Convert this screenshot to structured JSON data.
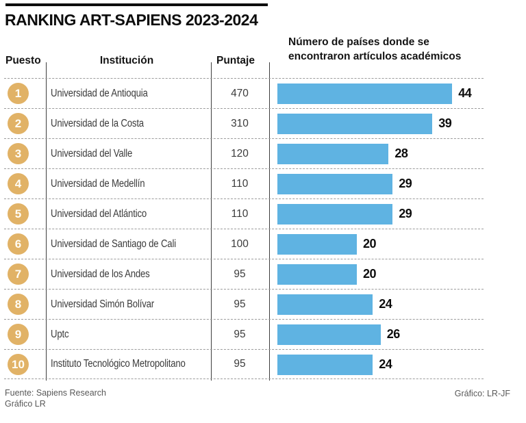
{
  "title": "RANKING ART-SAPIENS 2023-2024",
  "columns": {
    "rank": "Puesto",
    "institution": "Institución",
    "score": "Puntaje"
  },
  "bar_header": "Número de países donde se encontraron artículos académicos",
  "rows": [
    {
      "rank": "1",
      "institution": "Universidad de Antioquia",
      "score": "470",
      "countries": 44
    },
    {
      "rank": "2",
      "institution": "Universidad de la Costa",
      "score": "310",
      "countries": 39
    },
    {
      "rank": "3",
      "institution": "Universidad del Valle",
      "score": "120",
      "countries": 28
    },
    {
      "rank": "4",
      "institution": "Universidad de Medellín",
      "score": "110",
      "countries": 29
    },
    {
      "rank": "5",
      "institution": "Universidad del Atlántico",
      "score": "110",
      "countries": 29
    },
    {
      "rank": "6",
      "institution": "Universidad de Santiago de Cali",
      "score": "100",
      "countries": 20
    },
    {
      "rank": "7",
      "institution": "Universidad de los Andes",
      "score": "95",
      "countries": 20
    },
    {
      "rank": "8",
      "institution": "Universidad Simón Bolívar",
      "score": "95",
      "countries": 24
    },
    {
      "rank": "9",
      "institution": "Uptc",
      "score": "95",
      "countries": 26
    },
    {
      "rank": "10",
      "institution": "Instituto Tecnológico Metropolitano",
      "score": "95",
      "countries": 24
    }
  ],
  "footer": {
    "source_line1": "Fuente: Sapiens Research",
    "source_line2": "Gráfico LR",
    "credit": "Gráfico: LR-JF"
  },
  "colors": {
    "bar": "#5fb3e2",
    "rank_circle": "#e1b266"
  },
  "chart_data": {
    "type": "bar",
    "orientation": "horizontal",
    "title": "RANKING ART-SAPIENS 2023-2024",
    "categories": [
      "Universidad de Antioquia",
      "Universidad de la Costa",
      "Universidad del Valle",
      "Universidad de Medellín",
      "Universidad del Atlántico",
      "Universidad de Santiago de Cali",
      "Universidad de los Andes",
      "Universidad Simón Bolívar",
      "Uptc",
      "Instituto Tecnológico Metropolitano"
    ],
    "series": [
      {
        "name": "Puntaje",
        "values": [
          470,
          310,
          120,
          110,
          110,
          100,
          95,
          95,
          95,
          95
        ],
        "rendered_as": "table-column"
      },
      {
        "name": "Número de países donde se encontraron artículos académicos",
        "values": [
          44,
          39,
          28,
          29,
          29,
          20,
          20,
          24,
          26,
          24
        ],
        "rendered_as": "bars"
      }
    ],
    "xlim": [
      0,
      50
    ],
    "grid": false,
    "legend": false,
    "data_labels": true,
    "bar_color": "#5fb3e2"
  }
}
